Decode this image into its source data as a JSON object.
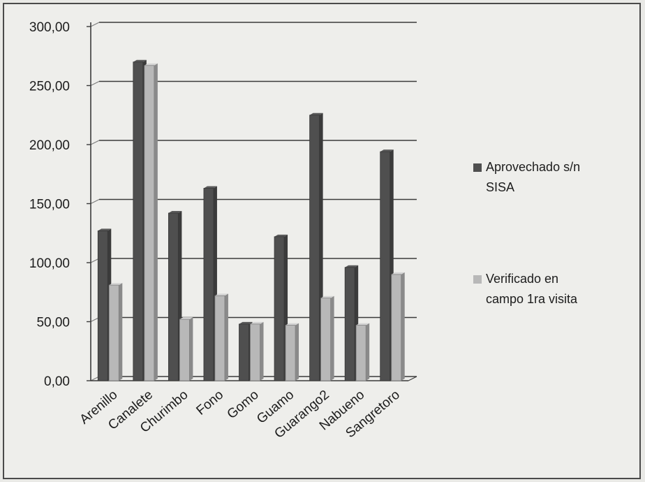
{
  "chart_data": {
    "type": "bar",
    "title": "",
    "xlabel": "",
    "ylabel": "",
    "categories": [
      "Arenillo",
      "Canalete",
      "Churimbo",
      "Fono",
      "Gomo",
      "Guamo",
      "Guarango2",
      "Nabueno",
      "Sangretoro"
    ],
    "series": [
      {
        "name": "Aprovechado s/n SISA",
        "values": [
          127,
          270,
          142,
          163,
          48,
          122,
          225,
          96,
          194
        ],
        "color": "#4f4f4f"
      },
      {
        "name": "Verificado en campo 1ra visita",
        "values": [
          81,
          267,
          52,
          72,
          48,
          47,
          70,
          47,
          90
        ],
        "color": "#b8b8b8"
      }
    ],
    "legend": {
      "position": "right",
      "entries": [
        {
          "lines": [
            "Aprovechado s/n",
            "SISA"
          ]
        },
        {
          "lines": [
            "Verificado en",
            "campo 1ra visita"
          ]
        }
      ]
    },
    "ylim": [
      0,
      300
    ],
    "yticks": [
      "0,00",
      "50,00",
      "100,00",
      "150,00",
      "200,00",
      "250,00",
      "300,00"
    ],
    "grid": true
  }
}
